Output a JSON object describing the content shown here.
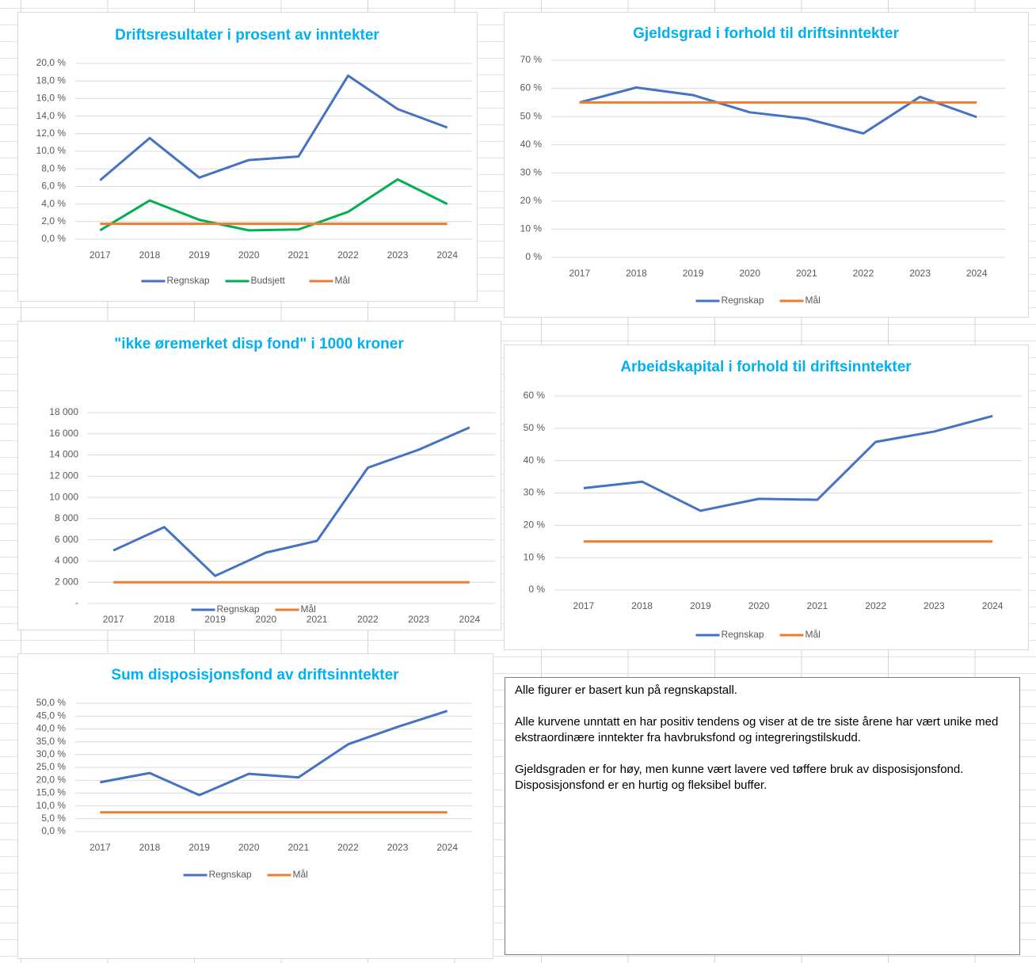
{
  "chart_data": [
    {
      "type": "line",
      "title": "Driftsresultater i prosent av inntekter",
      "categories": [
        "2017",
        "2018",
        "2019",
        "2020",
        "2021",
        "2022",
        "2023",
        "2024"
      ],
      "series": [
        {
          "name": "Regnskap",
          "color": "#4472c4",
          "values": [
            6.7,
            11.5,
            7.0,
            9.0,
            9.4,
            18.6,
            14.8,
            12.7
          ]
        },
        {
          "name": "Budsjett",
          "color": "#00b050",
          "values": [
            1.0,
            4.4,
            2.2,
            1.0,
            1.1,
            3.1,
            6.8,
            4.0
          ]
        },
        {
          "name": "Mål",
          "color": "#ed7d31",
          "values": [
            1.75,
            1.75,
            1.75,
            1.75,
            1.75,
            1.75,
            1.75,
            1.75
          ]
        }
      ],
      "ylim": [
        0,
        20
      ],
      "yticks": [
        {
          "value": 0,
          "label": "0,0 %"
        },
        {
          "value": 2,
          "label": "2,0 %"
        },
        {
          "value": 4,
          "label": "4,0 %"
        },
        {
          "value": 6,
          "label": "6,0 %"
        },
        {
          "value": 8,
          "label": "8,0 %"
        },
        {
          "value": 10,
          "label": "10,0 %"
        },
        {
          "value": 12,
          "label": "12,0 %"
        },
        {
          "value": 14,
          "label": "14,0 %"
        },
        {
          "value": 16,
          "label": "16,0 %"
        },
        {
          "value": 18,
          "label": "18,0 %"
        },
        {
          "value": 20,
          "label": "20,0 %"
        }
      ],
      "grid": true,
      "legend": "bottom"
    },
    {
      "type": "line",
      "title": "Gjeldsgrad i forhold til driftsinntekter",
      "categories": [
        "2017",
        "2018",
        "2019",
        "2020",
        "2021",
        "2022",
        "2023",
        "2024"
      ],
      "series": [
        {
          "name": "Regnskap",
          "color": "#4472c4",
          "values": [
            55,
            60.3,
            57.6,
            51.5,
            49.2,
            44,
            57,
            49.8
          ]
        },
        {
          "name": "Mål",
          "color": "#ed7d31",
          "values": [
            55,
            55,
            55,
            55,
            55,
            55,
            55,
            55
          ]
        }
      ],
      "ylim": [
        0,
        70
      ],
      "yticks": [
        {
          "value": 0,
          "label": "0 %"
        },
        {
          "value": 10,
          "label": "10 %"
        },
        {
          "value": 20,
          "label": "20 %"
        },
        {
          "value": 30,
          "label": "30 %"
        },
        {
          "value": 40,
          "label": "40 %"
        },
        {
          "value": 50,
          "label": "50 %"
        },
        {
          "value": 60,
          "label": "60 %"
        },
        {
          "value": 70,
          "label": "70 %"
        }
      ],
      "grid": true,
      "legend": "bottom"
    },
    {
      "type": "line",
      "title": "\"ikke øremerket disp fond\" i 1000 kroner",
      "categories": [
        "2017",
        "2018",
        "2019",
        "2020",
        "2021",
        "2022",
        "2023",
        "2024"
      ],
      "series": [
        {
          "name": "Regnskap",
          "color": "#4472c4",
          "values": [
            5000,
            7200,
            2600,
            4800,
            5900,
            12800,
            14500,
            16600
          ]
        },
        {
          "name": "Mål",
          "color": "#ed7d31",
          "values": [
            2000,
            2000,
            2000,
            2000,
            2000,
            2000,
            2000,
            2000
          ]
        }
      ],
      "ylim": [
        0,
        18000
      ],
      "yticks": [
        {
          "value": 0,
          "label": "-"
        },
        {
          "value": 2000,
          "label": "2 000"
        },
        {
          "value": 4000,
          "label": "4 000"
        },
        {
          "value": 6000,
          "label": "6 000"
        },
        {
          "value": 8000,
          "label": "8 000"
        },
        {
          "value": 10000,
          "label": "10 000"
        },
        {
          "value": 12000,
          "label": "12 000"
        },
        {
          "value": 14000,
          "label": "14 000"
        },
        {
          "value": 16000,
          "label": "16 000"
        },
        {
          "value": 18000,
          "label": "18 000"
        }
      ],
      "grid": true,
      "legend": "bottom"
    },
    {
      "type": "line",
      "title": "Arbeidskapital i forhold til driftsinntekter",
      "categories": [
        "2017",
        "2018",
        "2019",
        "2020",
        "2021",
        "2022",
        "2023",
        "2024"
      ],
      "series": [
        {
          "name": "Regnskap",
          "color": "#4472c4",
          "values": [
            31.5,
            33.5,
            24.5,
            28.2,
            27.9,
            45.8,
            49,
            53.8
          ]
        },
        {
          "name": "Mål",
          "color": "#ed7d31",
          "values": [
            15,
            15,
            15,
            15,
            15,
            15,
            15,
            15
          ]
        }
      ],
      "ylim": [
        0,
        60
      ],
      "yticks": [
        {
          "value": 0,
          "label": "0 %"
        },
        {
          "value": 10,
          "label": "10 %"
        },
        {
          "value": 20,
          "label": "20 %"
        },
        {
          "value": 30,
          "label": "30 %"
        },
        {
          "value": 40,
          "label": "40 %"
        },
        {
          "value": 50,
          "label": "50 %"
        },
        {
          "value": 60,
          "label": "60 %"
        }
      ],
      "grid": true,
      "legend": "bottom"
    },
    {
      "type": "line",
      "title": "Sum disposisjonsfond av driftsinntekter",
      "categories": [
        "2017",
        "2018",
        "2019",
        "2020",
        "2021",
        "2022",
        "2023",
        "2024"
      ],
      "series": [
        {
          "name": "Regnskap",
          "color": "#4472c4",
          "values": [
            19.2,
            22.8,
            14.2,
            22.5,
            21.1,
            34,
            40.8,
            47
          ]
        },
        {
          "name": "Mål",
          "color": "#ed7d31",
          "values": [
            7.5,
            7.5,
            7.5,
            7.5,
            7.5,
            7.5,
            7.5,
            7.5
          ]
        }
      ],
      "ylim": [
        0,
        50
      ],
      "yticks": [
        {
          "value": 0,
          "label": "0,0 %"
        },
        {
          "value": 5,
          "label": "5,0 %"
        },
        {
          "value": 10,
          "label": "10,0 %"
        },
        {
          "value": 15,
          "label": "15,0 %"
        },
        {
          "value": 20,
          "label": "20,0 %"
        },
        {
          "value": 25,
          "label": "25,0 %"
        },
        {
          "value": 30,
          "label": "30,0 %"
        },
        {
          "value": 35,
          "label": "35,0 %"
        },
        {
          "value": 40,
          "label": "40,0 %"
        },
        {
          "value": 45,
          "label": "45,0 %"
        },
        {
          "value": 50,
          "label": "50,0 %"
        }
      ],
      "grid": true,
      "legend": "bottom"
    }
  ],
  "text_box": {
    "paragraphs": [
      "Alle figurer er basert kun på regnskapstall.",
      "Alle kurvene unntatt en har positiv tendens og viser at de tre siste årene har vært unike med ekstraordinære inntekter fra havbruksfond og integreringstilskudd.",
      "Gjeldsgraden er for høy, men kunne vært lavere ved tøffere bruk av disposisjonsfond. Disposisjonsfond er en hurtig og fleksibel buffer."
    ]
  }
}
